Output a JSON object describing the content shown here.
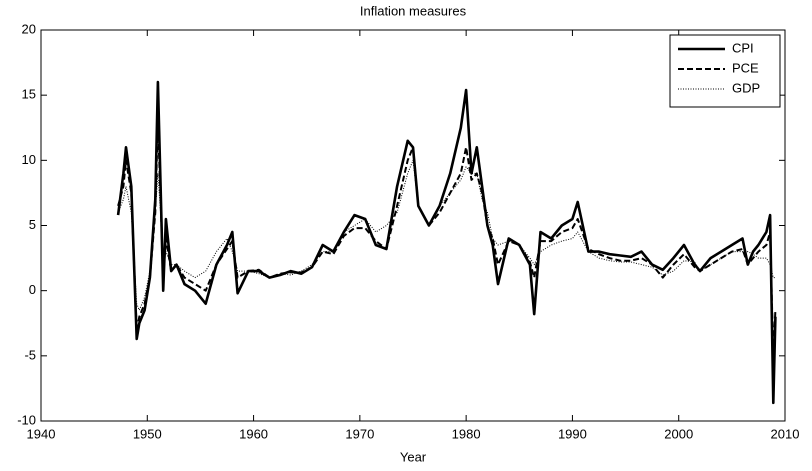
{
  "chart_data": {
    "type": "line",
    "title": "Inflation measures",
    "xlabel": "Year",
    "x": [
      1947.25,
      1947.75,
      1948.0,
      1948.5,
      1949.0,
      1949.25,
      1949.75,
      1950.25,
      1950.75,
      1951.0,
      1951.25,
      1951.5,
      1951.75,
      1952.25,
      1952.75,
      1953.5,
      1954.5,
      1955.5,
      1956.5,
      1957.5,
      1958.0,
      1958.5,
      1959.5,
      1960.5,
      1961.5,
      1962.5,
      1963.5,
      1964.5,
      1965.5,
      1966.5,
      1967.5,
      1968.5,
      1969.5,
      1970.5,
      1971.5,
      1972.5,
      1973.5,
      1974.5,
      1975.0,
      1975.5,
      1976.5,
      1977.5,
      1978.5,
      1979.5,
      1980.0,
      1980.5,
      1981.0,
      1981.5,
      1982.0,
      1982.5,
      1983.0,
      1984.0,
      1985.0,
      1986.0,
      1986.4,
      1987.0,
      1988.0,
      1989.0,
      1990.0,
      1990.5,
      1991.5,
      1992.5,
      1993.5,
      1994.5,
      1995.5,
      1996.5,
      1997.5,
      1998.5,
      1999.5,
      2000.5,
      2001.5,
      2002.0,
      2003.0,
      2004.0,
      2005.0,
      2006.0,
      2006.5,
      2007.0,
      2007.5,
      2008.25,
      2008.6,
      2008.9,
      2009.1
    ],
    "series": [
      {
        "name": "CPI",
        "color": "#000000",
        "style": "solid",
        "values": [
          5.8,
          9,
          11,
          8,
          -3.7,
          -2.5,
          -1.5,
          1,
          7,
          16,
          8,
          0,
          5.5,
          1.5,
          2,
          0.5,
          0,
          -1,
          2,
          3.5,
          4.5,
          -0.2,
          1.5,
          1.5,
          1.0,
          1.2,
          1.5,
          1.3,
          1.8,
          3.5,
          3,
          4.5,
          5.8,
          5.5,
          3.5,
          3.2,
          8,
          11.5,
          11,
          6.5,
          5,
          6.5,
          9,
          12.5,
          15.4,
          9,
          11,
          8,
          5,
          3.5,
          0.5,
          4,
          3.5,
          2,
          -1.8,
          4.5,
          4,
          5,
          5.5,
          6.8,
          3,
          3,
          2.8,
          2.7,
          2.6,
          3,
          2,
          1.6,
          2.5,
          3.5,
          2,
          1.5,
          2.5,
          3,
          3.5,
          4,
          2,
          3,
          3.5,
          4.5,
          5.8,
          -8.6,
          -2
        ]
      },
      {
        "name": "PCE",
        "color": "#000000",
        "style": "dashed",
        "values": [
          6.5,
          8,
          10,
          7.5,
          -3,
          -2,
          -1,
          1,
          6,
          13,
          7,
          1,
          4,
          1.5,
          2,
          1,
          0.5,
          0,
          2,
          3.2,
          3.8,
          1,
          1.5,
          1.6,
          1,
          1.3,
          1.4,
          1.4,
          1.8,
          3,
          2.8,
          4.2,
          4.8,
          4.8,
          3.8,
          3.2,
          6.5,
          10,
          11,
          6.5,
          5,
          6,
          7.5,
          9,
          11,
          8.5,
          9,
          7.5,
          5,
          4,
          2,
          3.8,
          3.5,
          2.2,
          1,
          3.8,
          3.8,
          4.5,
          4.8,
          5.5,
          3.2,
          2.8,
          2.5,
          2.3,
          2.3,
          2.5,
          2,
          1,
          2,
          2.8,
          1.8,
          1.5,
          2,
          2.5,
          3,
          3.2,
          2,
          2.5,
          3,
          3.5,
          4.5,
          -5,
          -1.5
        ]
      },
      {
        "name": "GDP",
        "color": "#000000",
        "style": "dotted",
        "values": [
          6,
          7,
          8,
          6,
          -1,
          -1.5,
          -0.5,
          1.5,
          6,
          9,
          6,
          2,
          3,
          2,
          2,
          1.5,
          1,
          1.5,
          3,
          4,
          3,
          1.5,
          1.5,
          1.3,
          1,
          1.3,
          1.2,
          1.5,
          2,
          3,
          3,
          4.5,
          5,
          5.5,
          4.5,
          5,
          6,
          9,
          10,
          6.5,
          5,
          6.5,
          7.5,
          8.5,
          9.5,
          9,
          9,
          7,
          6,
          4,
          3.5,
          3.8,
          3.5,
          2.5,
          2,
          3,
          3.5,
          3.8,
          4,
          4.5,
          3,
          2.5,
          2.3,
          2.2,
          2.2,
          2,
          1.8,
          1.2,
          1.5,
          2.3,
          2.2,
          1.5,
          2,
          2.5,
          3,
          3,
          3,
          2.8,
          2.5,
          2.5,
          2,
          1,
          1
        ]
      }
    ],
    "xlim": [
      1940,
      2010
    ],
    "xticks": [
      1940,
      1950,
      1960,
      1970,
      1980,
      1990,
      2000,
      2010
    ],
    "ylim": [
      -10,
      20
    ],
    "yticks": [
      -10,
      -5,
      0,
      5,
      10,
      15,
      20
    ],
    "legend": "upper right"
  }
}
